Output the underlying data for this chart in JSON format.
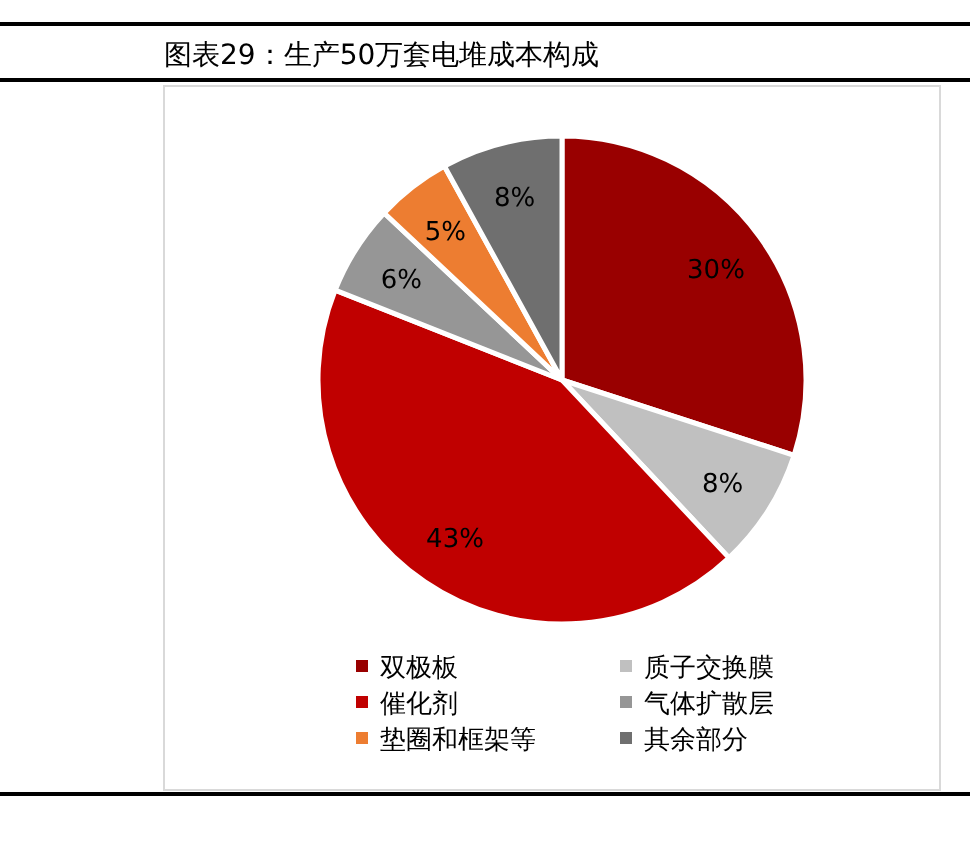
{
  "chart_data": {
    "type": "pie",
    "title": "图表29：生产50万套电堆成本构成",
    "categories": [
      "双极板",
      "质子交换膜",
      "催化剂",
      "气体扩散层",
      "垫圈和框架等",
      "其余部分"
    ],
    "values": [
      30,
      8,
      43,
      6,
      5,
      8
    ],
    "colors": [
      "#990000",
      "#c0c0c0",
      "#c00000",
      "#969696",
      "#ed7d31",
      "#6f6f6f"
    ],
    "value_labels": [
      "30%",
      "8%",
      "43%",
      "6%",
      "5%",
      "8%"
    ],
    "legend": "bottom"
  }
}
